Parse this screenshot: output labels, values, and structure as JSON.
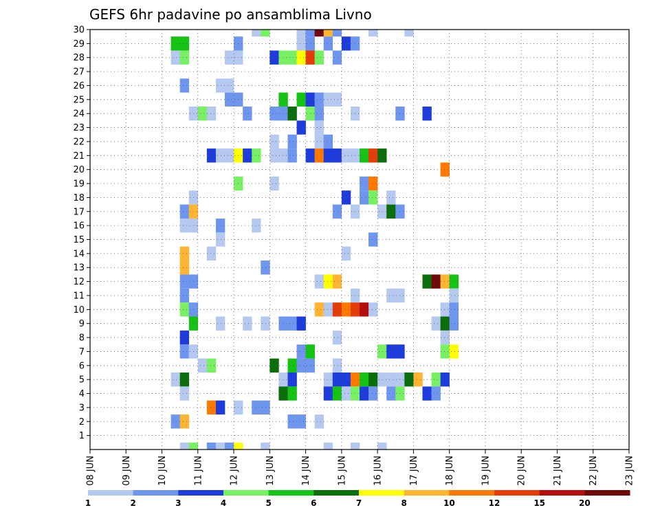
{
  "chart_data": {
    "type": "heatmap",
    "title": "GEFS 6hr padavine po ansamblima Livno",
    "xlabel": "",
    "ylabel": "",
    "x_ticks": [
      "08 JUN",
      "09 JUN",
      "10 JUN",
      "11 JUN",
      "12 JUN",
      "13 JUN",
      "14 JUN",
      "15 JUN",
      "16 JUN",
      "17 JUN",
      "18 JUN",
      "19 JUN",
      "20 JUN",
      "21 JUN",
      "22 JUN",
      "23 JUN"
    ],
    "y_ticks": [
      "1",
      "2",
      "3",
      "4",
      "5",
      "6",
      "7",
      "8",
      "9",
      "10",
      "11",
      "12",
      "13",
      "14",
      "15",
      "16",
      "17",
      "18",
      "19",
      "20",
      "21",
      "22",
      "23",
      "24",
      "25",
      "26",
      "27",
      "28",
      "29",
      "30"
    ],
    "ylim": [
      0,
      30
    ],
    "grid": true,
    "levels": [
      {
        "label": "1",
        "color": "#b4c8f0"
      },
      {
        "label": "2",
        "color": "#6e96ee"
      },
      {
        "label": "3",
        "color": "#1e3cdc"
      },
      {
        "label": "4",
        "color": "#78f064"
      },
      {
        "label": "5",
        "color": "#14c314"
      },
      {
        "label": "6",
        "color": "#0a6e0a"
      },
      {
        "label": "7",
        "color": "#ffff00"
      },
      {
        "label": "8",
        "color": "#ffb432"
      },
      {
        "label": "10",
        "color": "#ff7800"
      },
      {
        "label": "12",
        "color": "#e63c0a"
      },
      {
        "label": "15",
        "color": "#b40f0f"
      },
      {
        "label": "20",
        "color": "#6e0a0a"
      }
    ],
    "cells": [
      [
        4.5,
        30,
        0
      ],
      [
        4.75,
        30,
        3
      ],
      [
        5.75,
        30,
        0
      ],
      [
        6.0,
        30,
        1
      ],
      [
        6.25,
        30,
        11
      ],
      [
        6.5,
        30,
        7
      ],
      [
        6.75,
        30,
        1
      ],
      [
        7.75,
        30,
        0
      ],
      [
        8.75,
        30,
        0
      ],
      [
        2.25,
        29,
        4
      ],
      [
        2.5,
        29,
        4
      ],
      [
        4.0,
        29,
        1
      ],
      [
        5.75,
        29,
        0
      ],
      [
        6.0,
        29,
        1
      ],
      [
        6.5,
        29,
        1
      ],
      [
        7.0,
        29,
        2
      ],
      [
        7.25,
        29,
        1
      ],
      [
        2.25,
        28,
        0
      ],
      [
        2.5,
        28,
        3
      ],
      [
        3.75,
        28,
        0
      ],
      [
        4.0,
        28,
        0
      ],
      [
        5.0,
        28,
        2
      ],
      [
        5.25,
        28,
        3
      ],
      [
        5.5,
        28,
        3
      ],
      [
        5.75,
        28,
        6
      ],
      [
        6.0,
        28,
        9
      ],
      [
        6.25,
        28,
        3
      ],
      [
        6.75,
        28,
        1
      ],
      [
        2.5,
        26,
        1
      ],
      [
        3.5,
        26,
        0
      ],
      [
        3.75,
        26,
        0
      ],
      [
        3.75,
        25,
        1
      ],
      [
        4.0,
        25,
        1
      ],
      [
        5.25,
        25,
        4
      ],
      [
        5.75,
        25,
        4
      ],
      [
        6.0,
        25,
        2
      ],
      [
        6.25,
        25,
        1
      ],
      [
        6.5,
        25,
        0
      ],
      [
        6.75,
        25,
        0
      ],
      [
        2.75,
        24,
        0
      ],
      [
        3.0,
        24,
        3
      ],
      [
        3.25,
        24,
        0
      ],
      [
        4.25,
        24,
        1
      ],
      [
        5.0,
        24,
        1
      ],
      [
        5.25,
        24,
        1
      ],
      [
        5.5,
        24,
        5
      ],
      [
        6.0,
        24,
        3
      ],
      [
        6.25,
        24,
        1
      ],
      [
        7.25,
        24,
        0
      ],
      [
        8.5,
        24,
        1
      ],
      [
        9.25,
        24,
        2
      ],
      [
        5.75,
        23,
        2
      ],
      [
        6.25,
        23,
        0
      ],
      [
        5.0,
        22,
        0
      ],
      [
        5.5,
        22,
        1
      ],
      [
        6.25,
        22,
        0
      ],
      [
        6.5,
        22,
        1
      ],
      [
        3.25,
        21,
        2
      ],
      [
        3.5,
        21,
        0
      ],
      [
        3.75,
        21,
        0
      ],
      [
        4.0,
        21,
        6
      ],
      [
        4.25,
        21,
        2
      ],
      [
        4.5,
        21,
        3
      ],
      [
        5.0,
        21,
        0
      ],
      [
        5.25,
        21,
        0
      ],
      [
        5.5,
        21,
        1
      ],
      [
        6.0,
        21,
        2
      ],
      [
        6.25,
        21,
        8
      ],
      [
        6.5,
        21,
        2
      ],
      [
        6.75,
        21,
        2
      ],
      [
        7.0,
        21,
        0
      ],
      [
        7.25,
        21,
        0
      ],
      [
        7.5,
        21,
        4
      ],
      [
        7.75,
        21,
        9
      ],
      [
        8.0,
        21,
        5
      ],
      [
        9.75,
        20,
        8
      ],
      [
        4.0,
        19,
        3
      ],
      [
        5.0,
        19,
        0
      ],
      [
        7.5,
        19,
        1
      ],
      [
        7.75,
        19,
        8
      ],
      [
        2.75,
        18,
        0
      ],
      [
        7.0,
        18,
        2
      ],
      [
        7.5,
        18,
        1
      ],
      [
        7.75,
        18,
        3
      ],
      [
        8.25,
        18,
        0
      ],
      [
        2.5,
        17,
        1
      ],
      [
        2.75,
        17,
        7
      ],
      [
        6.75,
        17,
        1
      ],
      [
        7.25,
        17,
        0
      ],
      [
        8.0,
        17,
        0
      ],
      [
        8.25,
        17,
        5
      ],
      [
        8.5,
        17,
        1
      ],
      [
        2.5,
        16,
        0
      ],
      [
        2.75,
        16,
        0
      ],
      [
        3.5,
        16,
        1
      ],
      [
        4.5,
        16,
        0
      ],
      [
        3.5,
        15,
        0
      ],
      [
        7.75,
        15,
        1
      ],
      [
        2.5,
        14,
        7
      ],
      [
        3.25,
        14,
        0
      ],
      [
        7.0,
        14,
        0
      ],
      [
        2.5,
        13,
        7
      ],
      [
        4.75,
        13,
        1
      ],
      [
        2.5,
        12,
        1
      ],
      [
        2.75,
        12,
        1
      ],
      [
        6.25,
        12,
        0
      ],
      [
        6.5,
        12,
        6
      ],
      [
        6.75,
        12,
        7
      ],
      [
        9.25,
        12,
        5
      ],
      [
        9.5,
        12,
        11
      ],
      [
        9.75,
        12,
        7
      ],
      [
        10.0,
        12,
        4
      ],
      [
        2.5,
        11,
        1
      ],
      [
        7.25,
        11,
        0
      ],
      [
        8.25,
        11,
        0
      ],
      [
        8.5,
        11,
        0
      ],
      [
        10.0,
        11,
        0
      ],
      [
        2.5,
        10,
        3
      ],
      [
        2.75,
        10,
        1
      ],
      [
        6.25,
        10,
        7
      ],
      [
        6.5,
        10,
        0
      ],
      [
        6.75,
        10,
        9
      ],
      [
        7.0,
        10,
        8
      ],
      [
        7.25,
        10,
        9
      ],
      [
        7.5,
        10,
        10
      ],
      [
        7.75,
        10,
        0
      ],
      [
        9.75,
        10,
        0
      ],
      [
        10.0,
        10,
        1
      ],
      [
        2.75,
        9,
        4
      ],
      [
        3.5,
        9,
        0
      ],
      [
        4.25,
        9,
        0
      ],
      [
        4.75,
        9,
        0
      ],
      [
        5.25,
        9,
        1
      ],
      [
        5.5,
        9,
        1
      ],
      [
        5.75,
        9,
        2
      ],
      [
        9.5,
        9,
        0
      ],
      [
        9.75,
        9,
        5
      ],
      [
        10.0,
        9,
        1
      ],
      [
        2.5,
        8,
        2
      ],
      [
        6.75,
        8,
        0
      ],
      [
        9.75,
        8,
        0
      ],
      [
        2.5,
        7,
        1
      ],
      [
        2.75,
        7,
        0
      ],
      [
        5.75,
        7,
        1
      ],
      [
        6.0,
        7,
        4
      ],
      [
        8.0,
        7,
        3
      ],
      [
        8.25,
        7,
        2
      ],
      [
        8.5,
        7,
        2
      ],
      [
        9.75,
        7,
        3
      ],
      [
        10.0,
        7,
        6
      ],
      [
        3.0,
        6,
        0
      ],
      [
        3.25,
        6,
        3
      ],
      [
        5.0,
        6,
        5
      ],
      [
        5.5,
        6,
        4
      ],
      [
        5.75,
        6,
        1
      ],
      [
        6.0,
        6,
        1
      ],
      [
        6.75,
        6,
        0
      ],
      [
        2.25,
        5,
        0
      ],
      [
        2.5,
        5,
        5
      ],
      [
        5.25,
        5,
        0
      ],
      [
        5.5,
        5,
        2
      ],
      [
        6.5,
        5,
        0
      ],
      [
        6.75,
        5,
        2
      ],
      [
        7.0,
        5,
        2
      ],
      [
        7.25,
        5,
        8
      ],
      [
        7.5,
        5,
        4
      ],
      [
        7.75,
        5,
        5
      ],
      [
        8.0,
        5,
        0
      ],
      [
        8.25,
        5,
        0
      ],
      [
        8.5,
        5,
        0
      ],
      [
        8.75,
        5,
        5
      ],
      [
        9.0,
        5,
        7
      ],
      [
        9.5,
        5,
        3
      ],
      [
        9.75,
        5,
        2
      ],
      [
        2.5,
        4,
        0
      ],
      [
        5.25,
        4,
        5
      ],
      [
        5.5,
        4,
        4
      ],
      [
        6.5,
        4,
        2
      ],
      [
        6.75,
        4,
        4
      ],
      [
        7.0,
        4,
        0
      ],
      [
        7.25,
        4,
        3
      ],
      [
        7.5,
        4,
        2
      ],
      [
        7.75,
        4,
        1
      ],
      [
        8.25,
        4,
        1
      ],
      [
        8.5,
        4,
        3
      ],
      [
        9.25,
        4,
        2
      ],
      [
        9.5,
        4,
        1
      ],
      [
        3.25,
        3,
        8
      ],
      [
        3.5,
        3,
        2
      ],
      [
        4.0,
        3,
        0
      ],
      [
        4.5,
        3,
        1
      ],
      [
        4.75,
        3,
        1
      ],
      [
        2.25,
        2,
        1
      ],
      [
        2.5,
        2,
        7
      ],
      [
        5.5,
        2,
        1
      ],
      [
        5.75,
        2,
        1
      ],
      [
        6.25,
        2,
        0
      ],
      [
        2.5,
        0,
        0
      ],
      [
        2.75,
        0,
        3
      ],
      [
        3.25,
        0,
        1
      ],
      [
        3.5,
        0,
        0
      ],
      [
        3.75,
        0,
        1
      ],
      [
        4.0,
        0,
        6
      ],
      [
        4.75,
        0,
        0
      ],
      [
        6.5,
        0,
        0
      ],
      [
        7.25,
        0,
        0
      ],
      [
        8.0,
        0,
        0
      ]
    ]
  }
}
